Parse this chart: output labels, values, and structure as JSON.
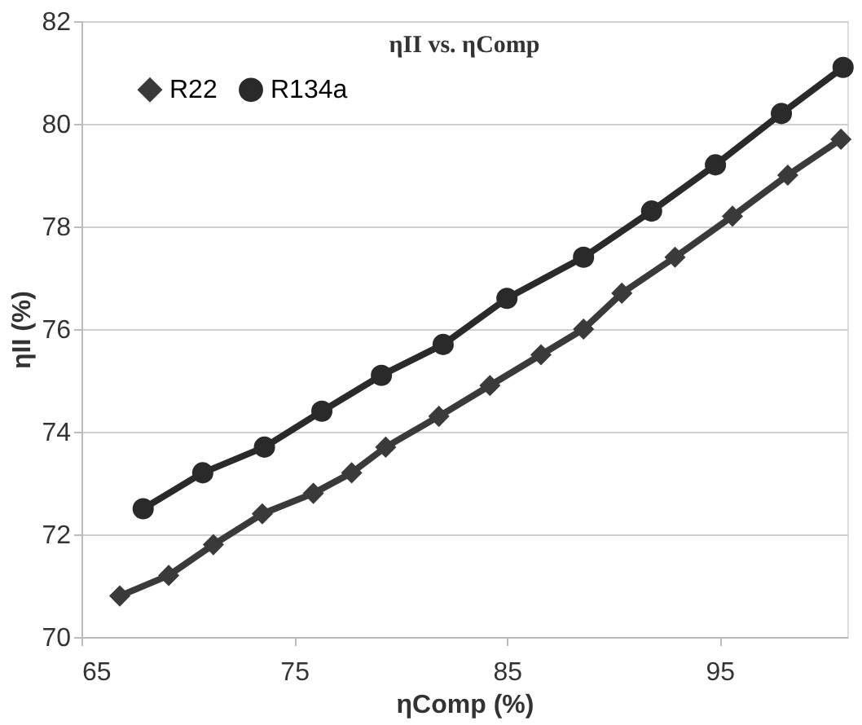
{
  "chart_data": {
    "type": "line",
    "title": "ηII vs. ηComp",
    "xlabel": "ηComp (%)",
    "ylabel": "ηII (%)",
    "xlim": [
      65,
      101
    ],
    "xticks": [
      65,
      75,
      85,
      95
    ],
    "ylim": [
      70,
      82
    ],
    "yticks": [
      70,
      72,
      74,
      76,
      78,
      80,
      82
    ],
    "grid": "y",
    "legend": "top left",
    "series": [
      {
        "name": "R22",
        "color": "#3a3a3a",
        "marker": "diamond",
        "x": [
          66.8,
          69.1,
          71.2,
          73.5,
          75.9,
          77.7,
          79.3,
          81.8,
          84.2,
          86.6,
          88.6,
          90.4,
          92.9,
          95.6,
          98.2,
          100.7
        ],
        "values": [
          70.8,
          71.2,
          71.8,
          72.4,
          72.8,
          73.2,
          73.7,
          74.3,
          74.9,
          75.5,
          76.0,
          76.7,
          77.4,
          78.2,
          79.0,
          79.7
        ]
      },
      {
        "name": "R134a",
        "color": "#2a2a2a",
        "marker": "circle",
        "x": [
          67.9,
          70.7,
          73.6,
          76.3,
          79.1,
          82.0,
          85.0,
          88.6,
          91.8,
          94.8,
          97.9,
          100.8
        ],
        "values": [
          72.5,
          73.2,
          73.7,
          74.4,
          75.1,
          75.7,
          76.6,
          77.4,
          78.3,
          79.2,
          80.2,
          81.1
        ]
      }
    ]
  }
}
